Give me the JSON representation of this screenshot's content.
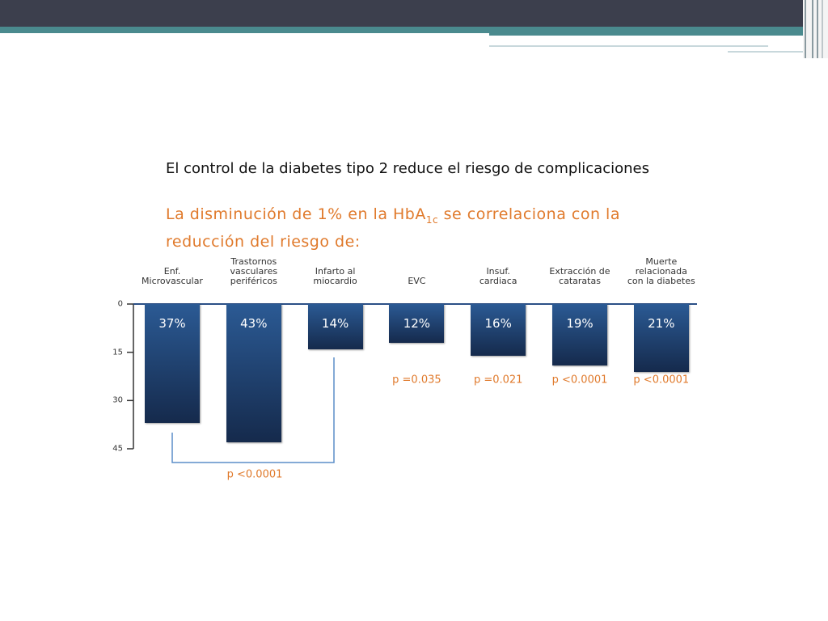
{
  "chart_data": {
    "type": "bar",
    "title": "El control de la diabetes tipo 2 reduce el riesgo de complicaciones",
    "subtitle_parts": [
      "La disminución de 1% en la HbA",
      "1c",
      " se correlaciona con la reducción del riesgo de:"
    ],
    "categories": [
      "Enf.\nMicrovascular",
      "Trastornos\nvasculares\nperiféricos",
      "Infarto al\nmiocardio",
      "EVC",
      "Insuf.\ncardiaca",
      "Extracción de\ncataratas",
      "Muerte\nrelacionada\ncon la diabetes"
    ],
    "values": [
      37,
      43,
      14,
      12,
      16,
      19,
      21
    ],
    "value_labels": [
      "37%",
      "43%",
      "14%",
      "12%",
      "16%",
      "19%",
      "21%"
    ],
    "p_labels": [
      null,
      null,
      null,
      "p =0.035",
      "p =0.021",
      "p <0.0001",
      "p <0.0001"
    ],
    "bracket_label": "p <0.0001",
    "ylim": [
      0,
      45
    ],
    "yticks": [
      0,
      15,
      30,
      45
    ],
    "y_inverted": true,
    "color": "#2b5a94"
  }
}
